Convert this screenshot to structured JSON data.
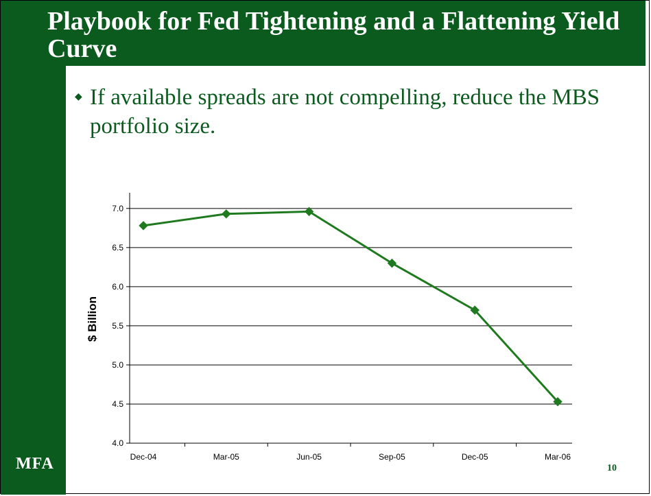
{
  "slide": {
    "title": "Playbook for Fed Tightening and a Flattening Yield Curve",
    "bullet": "If available spreads are not compelling, reduce the MBS portfolio size.",
    "logo": "MFA",
    "page_number": "10"
  },
  "colors": {
    "brand_green": "#0b5a1e",
    "series_green": "#1f7a1f"
  },
  "chart_data": {
    "type": "line",
    "title": "",
    "xlabel": "",
    "ylabel": "$ Billion",
    "categories": [
      "Dec-04",
      "Mar-05",
      "Jun-05",
      "Sep-05",
      "Dec-05",
      "Mar-06"
    ],
    "y_ticks": [
      4.0,
      4.5,
      5.0,
      5.5,
      6.0,
      6.5,
      7.0
    ],
    "ylim": [
      4.0,
      7.2
    ],
    "grid": true,
    "legend": "none",
    "series": [
      {
        "x": [
          "Dec-04",
          "Mar-05",
          "Jun-05",
          "Sep-05",
          "Dec-05",
          "Mar-06"
        ],
        "values": [
          6.78,
          6.93,
          6.96,
          6.3,
          5.7,
          4.53
        ]
      }
    ]
  }
}
